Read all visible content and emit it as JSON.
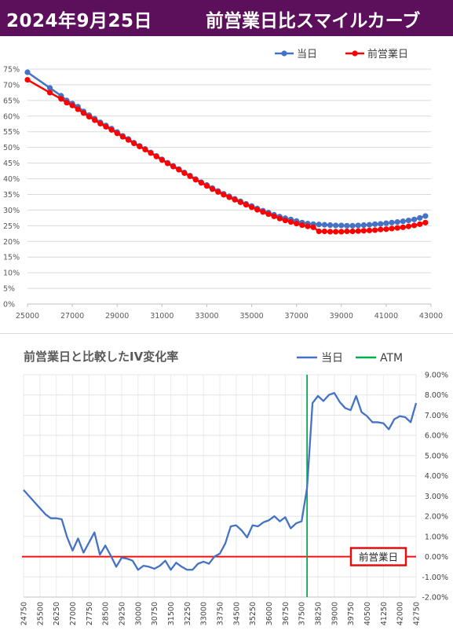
{
  "header": {
    "date": "2024年9月25日",
    "title": "前営業日比スマイルカーブ"
  },
  "chart_data": [
    {
      "type": "line",
      "title": "",
      "legend_position": "top-right",
      "grid": true,
      "x_ticks": [
        "25000",
        "27000",
        "29000",
        "31000",
        "33000",
        "35000",
        "37000",
        "39000",
        "41000",
        "43000"
      ],
      "y_ticks": [
        "0%",
        "5%",
        "10%",
        "15%",
        "20%",
        "25%",
        "30%",
        "35%",
        "40%",
        "45%",
        "50%",
        "55%",
        "60%",
        "65%",
        "70%",
        "75%"
      ],
      "xlim": [
        25000,
        43000
      ],
      "ylim": [
        0,
        0.75
      ],
      "series": [
        {
          "name": "当日",
          "color": "#4472c4",
          "x": [
            25000,
            26000,
            26500,
            26750,
            27000,
            27250,
            27500,
            27750,
            28000,
            28250,
            28500,
            28750,
            29000,
            29250,
            29500,
            29750,
            30000,
            30250,
            30500,
            30750,
            31000,
            31250,
            31500,
            31750,
            32000,
            32250,
            32500,
            32750,
            33000,
            33250,
            33500,
            33750,
            34000,
            34250,
            34500,
            34750,
            35000,
            35250,
            35500,
            35750,
            36000,
            36250,
            36500,
            36750,
            37000,
            37250,
            37500,
            37750,
            38000,
            38250,
            38500,
            38750,
            39000,
            39250,
            39500,
            39750,
            40000,
            40250,
            40500,
            40750,
            41000,
            41250,
            41500,
            41750,
            42000,
            42250,
            42500,
            42750
          ],
          "values": [
            0.74,
            0.69,
            0.665,
            0.65,
            0.64,
            0.63,
            0.615,
            0.603,
            0.592,
            0.58,
            0.57,
            0.56,
            0.549,
            0.537,
            0.527,
            0.515,
            0.505,
            0.495,
            0.484,
            0.473,
            0.462,
            0.451,
            0.441,
            0.431,
            0.42,
            0.41,
            0.399,
            0.389,
            0.38,
            0.37,
            0.361,
            0.352,
            0.344,
            0.336,
            0.328,
            0.32,
            0.313,
            0.305,
            0.298,
            0.292,
            0.285,
            0.279,
            0.274,
            0.27,
            0.265,
            0.26,
            0.257,
            0.255,
            0.254,
            0.253,
            0.252,
            0.251,
            0.251,
            0.25,
            0.25,
            0.251,
            0.252,
            0.253,
            0.255,
            0.256,
            0.258,
            0.26,
            0.262,
            0.264,
            0.267,
            0.27,
            0.275,
            0.281
          ]
        },
        {
          "name": "前営業日",
          "color": "#ff0000",
          "x": [
            25000,
            26000,
            26500,
            26750,
            27000,
            27250,
            27500,
            27750,
            28000,
            28250,
            28500,
            28750,
            29000,
            29250,
            29500,
            29750,
            30000,
            30250,
            30500,
            30750,
            31000,
            31250,
            31500,
            31750,
            32000,
            32250,
            32500,
            32750,
            33000,
            33250,
            33500,
            33750,
            34000,
            34250,
            34500,
            34750,
            35000,
            35250,
            35500,
            35750,
            36000,
            36250,
            36500,
            36750,
            37000,
            37250,
            37500,
            37750,
            38000,
            38250,
            38500,
            38750,
            39000,
            39250,
            39500,
            39750,
            40000,
            40250,
            40500,
            40750,
            41000,
            41250,
            41500,
            41750,
            42000,
            42250,
            42500,
            42750
          ],
          "values": [
            0.716,
            0.675,
            0.655,
            0.643,
            0.634,
            0.622,
            0.61,
            0.598,
            0.587,
            0.576,
            0.566,
            0.556,
            0.545,
            0.534,
            0.524,
            0.513,
            0.503,
            0.493,
            0.482,
            0.471,
            0.46,
            0.449,
            0.439,
            0.429,
            0.418,
            0.408,
            0.397,
            0.387,
            0.377,
            0.367,
            0.358,
            0.349,
            0.341,
            0.333,
            0.325,
            0.317,
            0.309,
            0.301,
            0.294,
            0.287,
            0.28,
            0.273,
            0.267,
            0.262,
            0.257,
            0.252,
            0.248,
            0.245,
            0.232,
            0.232,
            0.231,
            0.231,
            0.231,
            0.232,
            0.232,
            0.233,
            0.234,
            0.235,
            0.236,
            0.238,
            0.239,
            0.241,
            0.243,
            0.245,
            0.248,
            0.251,
            0.255,
            0.26
          ]
        }
      ]
    },
    {
      "type": "line",
      "title": "前営業日と比較したIV変化率",
      "legend_position": "top-right",
      "grid": true,
      "y_axis_side": "right",
      "x_ticks": [
        "24750",
        "25500",
        "26250",
        "27000",
        "27750",
        "28500",
        "29250",
        "30000",
        "30750",
        "31500",
        "32250",
        "33000",
        "33750",
        "34500",
        "35250",
        "36000",
        "36750",
        "37500",
        "38250",
        "39000",
        "39750",
        "40500",
        "41250",
        "42000",
        "42750"
      ],
      "y_ticks": [
        "-2.00%",
        "-1.00%",
        "0.00%",
        "1.00%",
        "2.00%",
        "3.00%",
        "4.00%",
        "5.00%",
        "6.00%",
        "7.00%",
        "8.00%",
        "9.00%"
      ],
      "xlim": [
        24750,
        42750
      ],
      "ylim": [
        -0.02,
        0.09
      ],
      "reference_line_label": "前営業日",
      "atm_strike": 37750,
      "series": [
        {
          "name": "当日",
          "color": "#4472c4",
          "x": [
            24750,
            25000,
            25250,
            25500,
            25750,
            26000,
            26250,
            26500,
            26750,
            27000,
            27250,
            27500,
            27750,
            28000,
            28250,
            28500,
            28750,
            29000,
            29250,
            29500,
            29750,
            30000,
            30250,
            30500,
            30750,
            31000,
            31250,
            31500,
            31750,
            32000,
            32250,
            32500,
            32750,
            33000,
            33250,
            33500,
            33750,
            34000,
            34250,
            34500,
            34750,
            35000,
            35250,
            35500,
            35750,
            36000,
            36250,
            36500,
            36750,
            37000,
            37250,
            37500,
            37750,
            38000,
            38250,
            38500,
            38750,
            39000,
            39250,
            39500,
            39750,
            40000,
            40250,
            40500,
            40750,
            41000,
            41250,
            41500,
            41750,
            42000,
            42250,
            42500,
            42750
          ],
          "values": [
            0.033,
            0.03,
            0.027,
            0.024,
            0.021,
            0.019,
            0.019,
            0.0185,
            0.0095,
            0.003,
            0.009,
            0.002,
            0.007,
            0.012,
            0.001,
            0.0055,
            0.0005,
            -0.005,
            -0.0005,
            -0.001,
            -0.002,
            -0.0065,
            -0.0045,
            -0.005,
            -0.006,
            -0.0045,
            -0.002,
            -0.0065,
            -0.003,
            -0.005,
            -0.0065,
            -0.0065,
            -0.0035,
            -0.0025,
            -0.0035,
            0,
            0.0015,
            0.0065,
            0.015,
            0.0155,
            0.013,
            0.0095,
            0.0155,
            0.015,
            0.017,
            0.018,
            0.02,
            0.0175,
            0.0195,
            0.014,
            0.0165,
            0.0175,
            0.034,
            0.076,
            0.0795,
            0.077,
            0.08,
            0.081,
            0.0765,
            0.0735,
            0.0725,
            0.0795,
            0.0715,
            0.0695,
            0.0665,
            0.0665,
            0.066,
            0.063,
            0.068,
            0.0695,
            0.069,
            0.0665,
            0.076
          ]
        },
        {
          "name": "ATM",
          "color": "#00b050"
        }
      ]
    }
  ]
}
